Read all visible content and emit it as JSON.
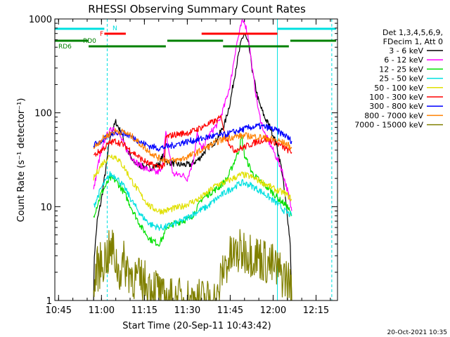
{
  "chart_data": {
    "type": "line",
    "title": "RHESSI Observing Summary Count Rates",
    "xlabel": "Start Time (20-Sep-11 10:43:42)",
    "ylabel": "Count Rate (s⁻¹ detector⁻¹)",
    "yscale": "log",
    "ylim": [
      1,
      1000
    ],
    "xlim": [
      "10:43:42",
      "12:22:30"
    ],
    "grid": false,
    "legend_position": "right",
    "x_ticks": [
      "10:45",
      "11:00",
      "11:15",
      "11:30",
      "11:45",
      "12:00",
      "12:15"
    ],
    "y_ticks": [
      "1",
      "10",
      "100",
      "1000"
    ],
    "footer": "20-Oct-2021 10:35",
    "legend_header": [
      "Det 1,3,4,5,6,9,",
      "FDecim 1, Att 0"
    ],
    "series": [
      {
        "name": "3 - 6 keV",
        "color": "#000000",
        "points": [
          [
            "10:57:15",
            1
          ],
          [
            "10:57:30",
            3
          ],
          [
            "10:58:30",
            7
          ],
          [
            "11:00:00",
            12
          ],
          [
            "11:01:30",
            25
          ],
          [
            "11:03:00",
            55
          ],
          [
            "11:05:00",
            80
          ],
          [
            "11:07:00",
            60
          ],
          [
            "11:09:00",
            40
          ],
          [
            "11:11:00",
            30
          ],
          [
            "11:14:00",
            27
          ],
          [
            "11:17:00",
            26
          ],
          [
            "11:20:00",
            28
          ],
          [
            "11:21:30",
            35
          ],
          [
            "11:23:00",
            30
          ],
          [
            "11:27:00",
            28
          ],
          [
            "11:31:00",
            28
          ],
          [
            "11:34:00",
            32
          ],
          [
            "11:37:00",
            42
          ],
          [
            "11:40:00",
            50
          ],
          [
            "11:43:00",
            75
          ],
          [
            "11:45:00",
            130
          ],
          [
            "11:47:00",
            300
          ],
          [
            "11:49:00",
            600
          ],
          [
            "11:50:00",
            700
          ],
          [
            "11:51:30",
            520
          ],
          [
            "11:53:00",
            250
          ],
          [
            "11:55:00",
            130
          ],
          [
            "11:57:00",
            90
          ],
          [
            "11:59:00",
            70
          ],
          [
            "12:01:00",
            48
          ],
          [
            "12:03:00",
            25
          ],
          [
            "12:04:00",
            14
          ],
          [
            "12:05:00",
            8
          ],
          [
            "12:06:00",
            4
          ],
          [
            "12:06:30",
            1
          ]
        ]
      },
      {
        "name": "6 - 12 keV",
        "color": "#ff00ff",
        "points": [
          [
            "10:57:15",
            15
          ],
          [
            "10:59:00",
            30
          ],
          [
            "11:01:30",
            55
          ],
          [
            "11:04:00",
            70
          ],
          [
            "11:06:00",
            60
          ],
          [
            "11:08:00",
            45
          ],
          [
            "11:10:00",
            35
          ],
          [
            "11:13:00",
            28
          ],
          [
            "11:16:00",
            25
          ],
          [
            "11:19:00",
            23
          ],
          [
            "11:21:00",
            24
          ],
          [
            "11:22:30",
            60
          ],
          [
            "11:25:00",
            22
          ],
          [
            "11:28:00",
            22
          ],
          [
            "11:30:00",
            20
          ],
          [
            "11:32:00",
            30
          ],
          [
            "11:33:30",
            60
          ],
          [
            "11:35:00",
            40
          ],
          [
            "11:38:00",
            60
          ],
          [
            "11:41:00",
            80
          ],
          [
            "11:43:00",
            120
          ],
          [
            "11:45:00",
            200
          ],
          [
            "11:47:00",
            500
          ],
          [
            "11:49:00",
            900
          ],
          [
            "11:50:00",
            950
          ],
          [
            "11:51:30",
            600
          ],
          [
            "11:53:00",
            250
          ],
          [
            "11:55:00",
            100
          ],
          [
            "11:57:00",
            60
          ],
          [
            "12:00:00",
            40
          ],
          [
            "12:03:00",
            25
          ],
          [
            "12:05:00",
            15
          ],
          [
            "12:06:30",
            9
          ]
        ]
      },
      {
        "name": "12 - 25 keV",
        "color": "#00e000",
        "points": [
          [
            "10:57:15",
            8
          ],
          [
            "11:00:00",
            14
          ],
          [
            "11:03:00",
            20
          ],
          [
            "11:05:00",
            19
          ],
          [
            "11:08:00",
            14
          ],
          [
            "11:11:00",
            9
          ],
          [
            "11:14:00",
            6
          ],
          [
            "11:17:00",
            4.5
          ],
          [
            "11:20:00",
            4
          ],
          [
            "11:22:00",
            5
          ],
          [
            "11:22:30",
            6
          ],
          [
            "11:25:00",
            6.5
          ],
          [
            "11:28:00",
            7
          ],
          [
            "11:31:00",
            7.5
          ],
          [
            "11:33:00",
            9
          ],
          [
            "11:35:00",
            12
          ],
          [
            "11:38:00",
            14
          ],
          [
            "11:41:00",
            16
          ],
          [
            "11:44:00",
            20
          ],
          [
            "11:46:00",
            28
          ],
          [
            "11:48:00",
            40
          ],
          [
            "11:49:00",
            55
          ],
          [
            "11:50:00",
            35
          ],
          [
            "11:53:00",
            22
          ],
          [
            "11:56:00",
            18
          ],
          [
            "11:59:00",
            15
          ],
          [
            "12:02:00",
            12
          ],
          [
            "12:05:00",
            10
          ],
          [
            "12:06:30",
            8
          ]
        ]
      },
      {
        "name": "25 - 50 keV",
        "color": "#00e0e0",
        "points": [
          [
            "10:57:15",
            10
          ],
          [
            "11:00:00",
            16
          ],
          [
            "11:03:00",
            22
          ],
          [
            "11:05:00",
            21
          ],
          [
            "11:08:00",
            16
          ],
          [
            "11:11:00",
            11
          ],
          [
            "11:14:00",
            8
          ],
          [
            "11:17:00",
            6.5
          ],
          [
            "11:20:00",
            6
          ],
          [
            "11:22:00",
            6
          ],
          [
            "11:25:00",
            6.5
          ],
          [
            "11:28:00",
            7
          ],
          [
            "11:31:00",
            8
          ],
          [
            "11:34:00",
            9
          ],
          [
            "11:37:00",
            10
          ],
          [
            "11:40:00",
            12
          ],
          [
            "11:43:00",
            14
          ],
          [
            "11:46:00",
            16
          ],
          [
            "11:49:00",
            18
          ],
          [
            "11:52:00",
            17
          ],
          [
            "11:55:00",
            15
          ],
          [
            "11:58:00",
            13
          ],
          [
            "12:01:00",
            11
          ],
          [
            "12:04:00",
            9
          ],
          [
            "12:06:30",
            8
          ]
        ]
      },
      {
        "name": "50 - 100 keV",
        "color": "#e0e000",
        "points": [
          [
            "10:57:15",
            20
          ],
          [
            "11:00:00",
            28
          ],
          [
            "11:03:00",
            35
          ],
          [
            "11:05:00",
            34
          ],
          [
            "11:08:00",
            26
          ],
          [
            "11:11:00",
            18
          ],
          [
            "11:14:00",
            13
          ],
          [
            "11:17:00",
            10
          ],
          [
            "11:20:00",
            9
          ],
          [
            "11:22:00",
            9
          ],
          [
            "11:25:00",
            9.5
          ],
          [
            "11:28:00",
            10
          ],
          [
            "11:31:00",
            11
          ],
          [
            "11:34:00",
            12
          ],
          [
            "11:37:00",
            14
          ],
          [
            "11:40:00",
            17
          ],
          [
            "11:43:00",
            18
          ],
          [
            "11:46:00",
            20
          ],
          [
            "11:49:00",
            22
          ],
          [
            "11:52:00",
            21
          ],
          [
            "11:55:00",
            19
          ],
          [
            "11:58:00",
            17
          ],
          [
            "12:01:00",
            15
          ],
          [
            "12:04:00",
            14
          ],
          [
            "12:06:30",
            12
          ]
        ]
      },
      {
        "name": "100 - 300 keV",
        "color": "#ff0000",
        "points": [
          [
            "10:57:15",
            35
          ],
          [
            "11:00:00",
            40
          ],
          [
            "11:03:00",
            48
          ],
          [
            "11:05:00",
            50
          ],
          [
            "11:08:00",
            45
          ],
          [
            "11:11:00",
            38
          ],
          [
            "11:14:00",
            32
          ],
          [
            "11:17:00",
            28
          ],
          [
            "11:20:00",
            27
          ],
          [
            "11:22:00",
            27
          ],
          [
            "11:22:30",
            55
          ],
          [
            "11:25:00",
            58
          ],
          [
            "11:28:00",
            60
          ],
          [
            "11:31:00",
            62
          ],
          [
            "11:34:00",
            68
          ],
          [
            "11:37:00",
            75
          ],
          [
            "11:40:00",
            82
          ],
          [
            "11:42:00",
            90
          ],
          [
            "11:43:00",
            60
          ],
          [
            "11:46:00",
            40
          ],
          [
            "11:49:00",
            42
          ],
          [
            "11:52:00",
            46
          ],
          [
            "11:55:00",
            50
          ],
          [
            "11:58:00",
            52
          ],
          [
            "12:01:00",
            48
          ],
          [
            "12:04:00",
            42
          ],
          [
            "12:06:30",
            38
          ]
        ]
      },
      {
        "name": "300 - 800 keV",
        "color": "#0000ff",
        "points": [
          [
            "10:57:15",
            45
          ],
          [
            "11:00:00",
            50
          ],
          [
            "11:03:00",
            58
          ],
          [
            "11:05:00",
            63
          ],
          [
            "11:08:00",
            60
          ],
          [
            "11:11:00",
            55
          ],
          [
            "11:14:00",
            48
          ],
          [
            "11:17:00",
            44
          ],
          [
            "11:20:00",
            42
          ],
          [
            "11:22:00",
            43
          ],
          [
            "11:25:00",
            45
          ],
          [
            "11:28:00",
            48
          ],
          [
            "11:31:00",
            50
          ],
          [
            "11:34:00",
            52
          ],
          [
            "11:37:00",
            55
          ],
          [
            "11:40:00",
            57
          ],
          [
            "11:43:00",
            58
          ],
          [
            "11:46:00",
            62
          ],
          [
            "11:49:00",
            66
          ],
          [
            "11:52:00",
            70
          ],
          [
            "11:55:00",
            72
          ],
          [
            "11:58:00",
            70
          ],
          [
            "12:01:00",
            65
          ],
          [
            "12:04:00",
            58
          ],
          [
            "12:06:30",
            50
          ]
        ]
      },
      {
        "name": "800 - 7000 keV",
        "color": "#ff8000",
        "points": [
          [
            "10:57:15",
            42
          ],
          [
            "11:00:00",
            52
          ],
          [
            "11:03:00",
            60
          ],
          [
            "11:05:00",
            64
          ],
          [
            "11:08:00",
            62
          ],
          [
            "11:11:00",
            55
          ],
          [
            "11:14:00",
            45
          ],
          [
            "11:17:00",
            38
          ],
          [
            "11:20:00",
            33
          ],
          [
            "11:23:00",
            31
          ],
          [
            "11:26:00",
            31
          ],
          [
            "11:29:00",
            33
          ],
          [
            "11:32:00",
            36
          ],
          [
            "11:35:00",
            40
          ],
          [
            "11:38:00",
            45
          ],
          [
            "11:41:00",
            50
          ],
          [
            "11:44:00",
            54
          ],
          [
            "11:47:00",
            56
          ],
          [
            "11:50:00",
            57
          ],
          [
            "11:53:00",
            56
          ],
          [
            "11:56:00",
            55
          ],
          [
            "11:59:00",
            53
          ],
          [
            "12:02:00",
            50
          ],
          [
            "12:05:00",
            46
          ],
          [
            "12:06:30",
            42
          ]
        ]
      },
      {
        "name": "7000 - 15000 keV",
        "color": "#808000",
        "points": [
          [
            "10:57:15",
            1
          ],
          [
            "10:58:00",
            2
          ],
          [
            "11:00:00",
            2.5
          ],
          [
            "11:02:00",
            3
          ],
          [
            "11:04:00",
            3.5
          ],
          [
            "11:06:00",
            2
          ],
          [
            "11:08:00",
            2.5
          ],
          [
            "11:10:00",
            2
          ],
          [
            "11:12:00",
            1.7
          ],
          [
            "11:14:00",
            1.6
          ],
          [
            "11:16:00",
            1.5
          ],
          [
            "11:20:00",
            1.3
          ],
          [
            "11:21:00",
            1
          ],
          [
            "11:41:00",
            1
          ],
          [
            "11:42:00",
            2
          ],
          [
            "11:44:00",
            2.6
          ],
          [
            "11:46:00",
            3
          ],
          [
            "11:48:00",
            3.2
          ],
          [
            "11:50:00",
            3.4
          ],
          [
            "11:52:00",
            3.2
          ],
          [
            "11:54:00",
            3
          ],
          [
            "11:56:00",
            2.8
          ],
          [
            "11:58:00",
            2.5
          ],
          [
            "12:00:00",
            2.3
          ],
          [
            "12:02:00",
            2
          ],
          [
            "12:04:00",
            1.8
          ],
          [
            "12:06:00",
            1.5
          ],
          [
            "12:06:30",
            1
          ]
        ]
      }
    ],
    "state_bars": [
      {
        "label": "N",
        "color": "#00e0e0",
        "level": "top",
        "segments": [
          [
            "10:43:42",
            "11:01:00"
          ],
          [
            "12:01:30",
            "12:22:00"
          ]
        ]
      },
      {
        "label": "F",
        "color": "#ff0000",
        "level": "mid",
        "segments": [
          [
            "11:01:00",
            "11:08:30"
          ],
          [
            "11:35:00",
            "12:01:30"
          ]
        ]
      },
      {
        "label": "RD0",
        "color": "#008000",
        "level": "mid",
        "segments": [
          [
            "10:43:42",
            "10:55:30"
          ],
          [
            "11:23:00",
            "11:42:30"
          ],
          [
            "12:06:00",
            "12:22:00"
          ]
        ]
      },
      {
        "label": "RD6",
        "color": "#008000",
        "level": "low",
        "segments": [
          [
            "10:55:30",
            "11:22:30"
          ],
          [
            "11:42:30",
            "12:05:30"
          ]
        ]
      }
    ],
    "markers": [
      {
        "time": "11:02:00",
        "style": "dashed",
        "color": "#00e0e0"
      },
      {
        "time": "12:01:30",
        "style": "solid",
        "color": "#00e0e0"
      },
      {
        "time": "12:20:30",
        "style": "dashed",
        "color": "#00e0e0"
      }
    ]
  }
}
